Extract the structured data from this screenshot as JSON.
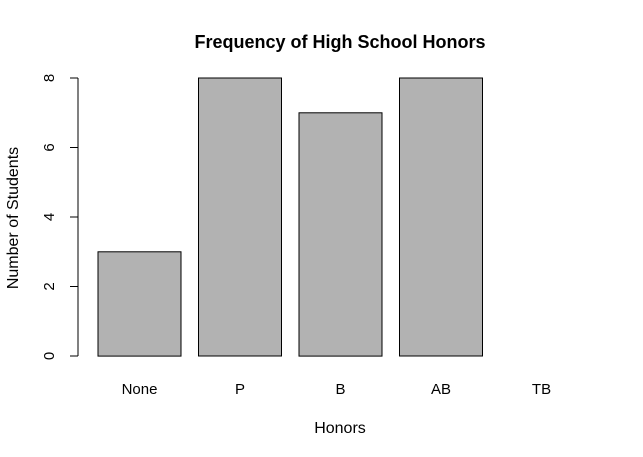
{
  "chart_data": {
    "type": "bar",
    "title": "Frequency of High School Honors",
    "xlabel": "Honors",
    "ylabel": "Number of Students",
    "categories": [
      "None",
      "P",
      "B",
      "AB",
      "TB"
    ],
    "values": [
      3,
      8,
      7,
      8,
      0
    ],
    "ylim": [
      0,
      8
    ],
    "yticks": [
      "0",
      "2",
      "4",
      "6",
      "8"
    ],
    "grid": false,
    "bar_color": "#b2b2b2",
    "bar_border_color": "#000000"
  }
}
